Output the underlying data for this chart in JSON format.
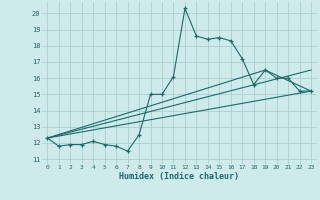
{
  "xlabel": "Humidex (Indice chaleur)",
  "bg_color": "#ceeaea",
  "grid_color": "#aacfcf",
  "line_color": "#1a6b6b",
  "xlim": [
    -0.5,
    23.5
  ],
  "ylim": [
    10.7,
    20.7
  ],
  "yticks": [
    11,
    12,
    13,
    14,
    15,
    16,
    17,
    18,
    19,
    20
  ],
  "xticks": [
    0,
    1,
    2,
    3,
    4,
    5,
    6,
    7,
    8,
    9,
    10,
    11,
    12,
    13,
    14,
    15,
    16,
    17,
    18,
    19,
    20,
    21,
    22,
    23
  ],
  "series1_x": [
    0,
    1,
    2,
    3,
    4,
    5,
    6,
    7,
    8,
    9,
    10,
    11,
    12,
    13,
    14,
    15,
    16,
    17,
    18,
    19,
    20,
    21,
    22,
    23
  ],
  "series1_y": [
    12.3,
    11.8,
    11.9,
    11.9,
    12.1,
    11.9,
    11.8,
    11.5,
    12.5,
    15.0,
    15.0,
    16.1,
    20.3,
    18.6,
    18.4,
    18.5,
    18.3,
    17.2,
    15.6,
    16.5,
    16.0,
    16.0,
    15.2,
    15.2
  ],
  "series2_x": [
    0,
    23
  ],
  "series2_y": [
    12.3,
    15.2
  ],
  "series3_x": [
    0,
    19,
    23
  ],
  "series3_y": [
    12.3,
    16.5,
    15.2
  ],
  "series4_x": [
    0,
    23
  ],
  "series4_y": [
    12.3,
    16.5
  ]
}
